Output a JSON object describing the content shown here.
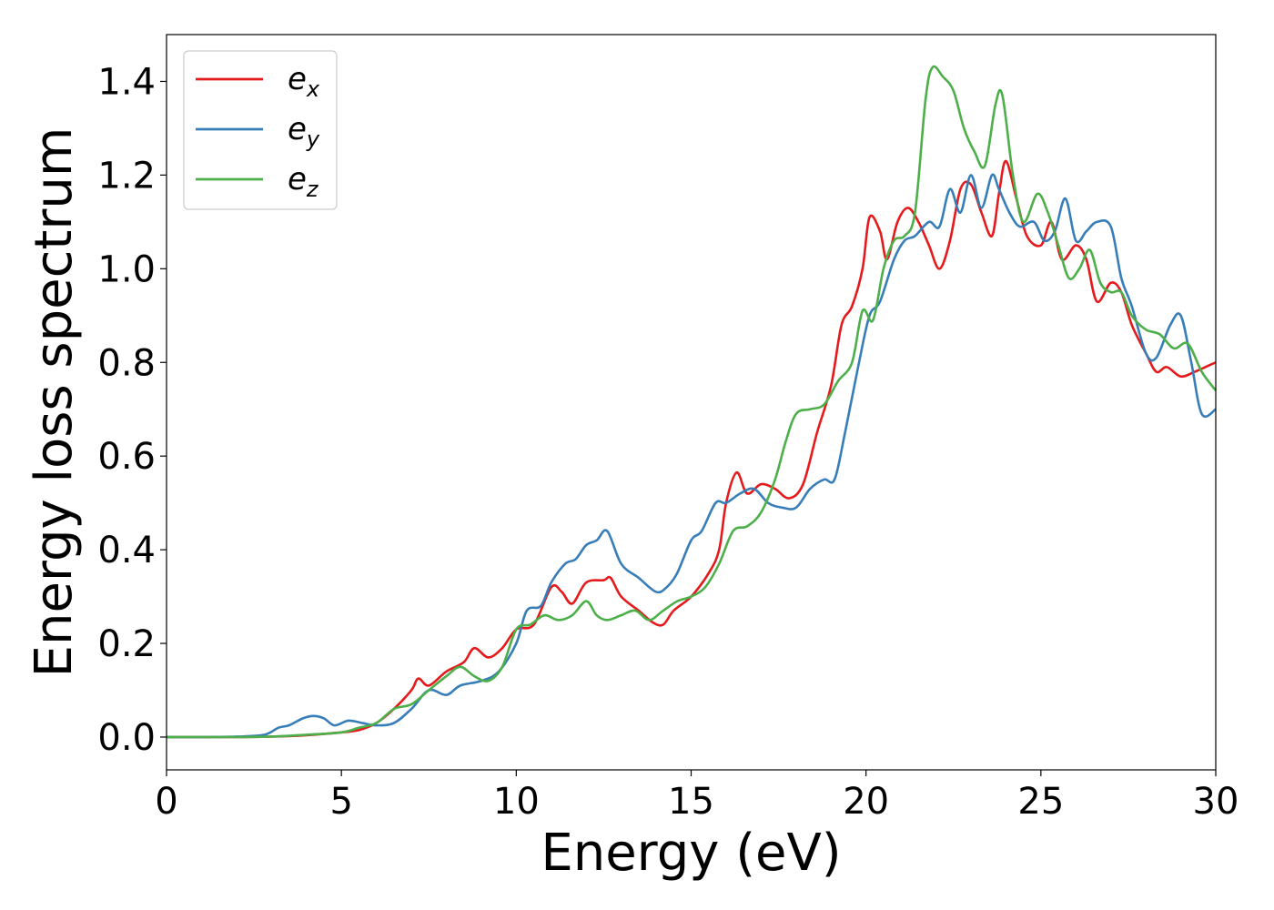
{
  "chart_data": {
    "type": "line",
    "title": "",
    "xlabel": "Energy (eV)",
    "ylabel": "Energy loss spectrum",
    "xlim": [
      0,
      30
    ],
    "ylim": [
      -0.07,
      1.5
    ],
    "xticks": [
      0,
      5,
      10,
      15,
      20,
      25,
      30
    ],
    "xtick_labels": [
      "0",
      "5",
      "10",
      "15",
      "20",
      "25",
      "30"
    ],
    "yticks": [
      0.0,
      0.2,
      0.4,
      0.6,
      0.8,
      1.0,
      1.2,
      1.4
    ],
    "ytick_labels": [
      "0.0",
      "0.2",
      "0.4",
      "0.6",
      "0.8",
      "1.0",
      "1.2",
      "1.4"
    ],
    "grid": false,
    "legend_position": "upper-left",
    "series": [
      {
        "name": "x",
        "color": "#e41a1c",
        "x": [
          0,
          1,
          2,
          3,
          4,
          5,
          5.5,
          6,
          6.5,
          7,
          7.2,
          7.5,
          8,
          8.5,
          8.8,
          9.2,
          9.6,
          10,
          10.5,
          11,
          11.3,
          11.6,
          12,
          12.5,
          12.7,
          13,
          13.5,
          13.9,
          14.2,
          14.5,
          15,
          15.5,
          15.8,
          16,
          16.3,
          16.6,
          17,
          17.4,
          17.8,
          18.2,
          18.6,
          19,
          19.3,
          19.6,
          19.9,
          20.1,
          20.4,
          20.6,
          20.9,
          21.2,
          21.5,
          21.8,
          22.1,
          22.4,
          22.7,
          23,
          23.3,
          23.6,
          23.8,
          24,
          24.3,
          24.6,
          25,
          25.3,
          25.6,
          26,
          26.3,
          26.6,
          27,
          27.3,
          27.6,
          28,
          28.3,
          28.6,
          29,
          29.4,
          29.7,
          30
        ],
        "y": [
          0,
          0,
          0,
          0.001,
          0.004,
          0.01,
          0.015,
          0.03,
          0.06,
          0.1,
          0.125,
          0.11,
          0.14,
          0.16,
          0.19,
          0.17,
          0.19,
          0.23,
          0.24,
          0.32,
          0.31,
          0.285,
          0.33,
          0.335,
          0.34,
          0.3,
          0.27,
          0.245,
          0.24,
          0.27,
          0.3,
          0.35,
          0.4,
          0.5,
          0.565,
          0.52,
          0.54,
          0.53,
          0.51,
          0.54,
          0.65,
          0.75,
          0.88,
          0.92,
          1.0,
          1.11,
          1.08,
          1.02,
          1.1,
          1.13,
          1.1,
          1.05,
          1.0,
          1.06,
          1.17,
          1.18,
          1.12,
          1.07,
          1.16,
          1.23,
          1.15,
          1.07,
          1.05,
          1.1,
          1.02,
          1.05,
          1.02,
          0.93,
          0.97,
          0.95,
          0.88,
          0.82,
          0.78,
          0.79,
          0.77,
          0.78,
          0.79,
          0.8
        ]
      },
      {
        "name": "y",
        "color": "#377eb8",
        "x": [
          0,
          1,
          2,
          2.8,
          3.2,
          3.5,
          3.9,
          4.2,
          4.5,
          4.8,
          5.2,
          5.6,
          6,
          6.5,
          7,
          7.5,
          8,
          8.4,
          9,
          9.5,
          10,
          10.3,
          10.7,
          11,
          11.4,
          11.7,
          12,
          12.3,
          12.6,
          13,
          13.5,
          14,
          14.3,
          14.6,
          15,
          15.3,
          15.7,
          16,
          16.4,
          16.8,
          17.2,
          17.6,
          18,
          18.4,
          18.8,
          19.1,
          19.4,
          19.8,
          20.1,
          20.4,
          20.8,
          21.1,
          21.4,
          21.8,
          22.1,
          22.4,
          22.7,
          23,
          23.3,
          23.6,
          23.8,
          24.1,
          24.4,
          24.8,
          25.1,
          25.4,
          25.7,
          26,
          26.3,
          26.6,
          27,
          27.3,
          27.6,
          28,
          28.3,
          28.7,
          29,
          29.3,
          29.6,
          30
        ],
        "y": [
          0,
          0,
          0.001,
          0.005,
          0.02,
          0.025,
          0.04,
          0.045,
          0.04,
          0.025,
          0.035,
          0.03,
          0.025,
          0.03,
          0.06,
          0.1,
          0.09,
          0.11,
          0.12,
          0.14,
          0.2,
          0.27,
          0.28,
          0.33,
          0.37,
          0.38,
          0.41,
          0.42,
          0.44,
          0.37,
          0.34,
          0.31,
          0.32,
          0.35,
          0.42,
          0.44,
          0.5,
          0.5,
          0.52,
          0.53,
          0.5,
          0.49,
          0.49,
          0.53,
          0.55,
          0.55,
          0.65,
          0.8,
          0.9,
          0.93,
          1.02,
          1.06,
          1.07,
          1.1,
          1.09,
          1.17,
          1.12,
          1.2,
          1.13,
          1.2,
          1.17,
          1.12,
          1.09,
          1.1,
          1.06,
          1.08,
          1.15,
          1.06,
          1.08,
          1.1,
          1.09,
          0.98,
          0.92,
          0.82,
          0.81,
          0.88,
          0.9,
          0.8,
          0.69,
          0.7
        ]
      },
      {
        "name": "z",
        "color": "#4daf4a",
        "x": [
          0,
          1,
          2,
          3,
          4,
          5,
          5.5,
          6,
          6.5,
          7,
          7.5,
          8,
          8.4,
          8.8,
          9.2,
          9.6,
          10,
          10.4,
          10.8,
          11.2,
          11.6,
          12,
          12.3,
          12.6,
          13,
          13.4,
          13.8,
          14.2,
          14.6,
          15,
          15.4,
          15.8,
          16.2,
          16.6,
          17,
          17.4,
          17.7,
          18,
          18.4,
          18.8,
          19.2,
          19.6,
          19.9,
          20.2,
          20.5,
          20.8,
          21.1,
          21.4,
          21.7,
          21.9,
          22.2,
          22.5,
          22.8,
          23.1,
          23.4,
          23.7,
          23.9,
          24.2,
          24.5,
          24.9,
          25.2,
          25.5,
          25.8,
          26.1,
          26.4,
          26.7,
          27,
          27.3,
          27.6,
          28,
          28.4,
          28.8,
          29.2,
          29.6,
          30
        ],
        "y": [
          0,
          0,
          0,
          0.001,
          0.005,
          0.01,
          0.02,
          0.03,
          0.06,
          0.07,
          0.1,
          0.13,
          0.15,
          0.13,
          0.12,
          0.15,
          0.23,
          0.24,
          0.26,
          0.25,
          0.26,
          0.29,
          0.26,
          0.25,
          0.26,
          0.27,
          0.25,
          0.27,
          0.29,
          0.3,
          0.32,
          0.37,
          0.44,
          0.45,
          0.48,
          0.55,
          0.63,
          0.69,
          0.7,
          0.71,
          0.76,
          0.8,
          0.91,
          0.89,
          1.0,
          1.06,
          1.07,
          1.12,
          1.36,
          1.43,
          1.41,
          1.38,
          1.3,
          1.25,
          1.22,
          1.35,
          1.37,
          1.2,
          1.1,
          1.16,
          1.12,
          1.05,
          0.98,
          1.0,
          1.04,
          0.97,
          0.95,
          0.95,
          0.9,
          0.87,
          0.86,
          0.83,
          0.84,
          0.78,
          0.74
        ]
      }
    ]
  }
}
